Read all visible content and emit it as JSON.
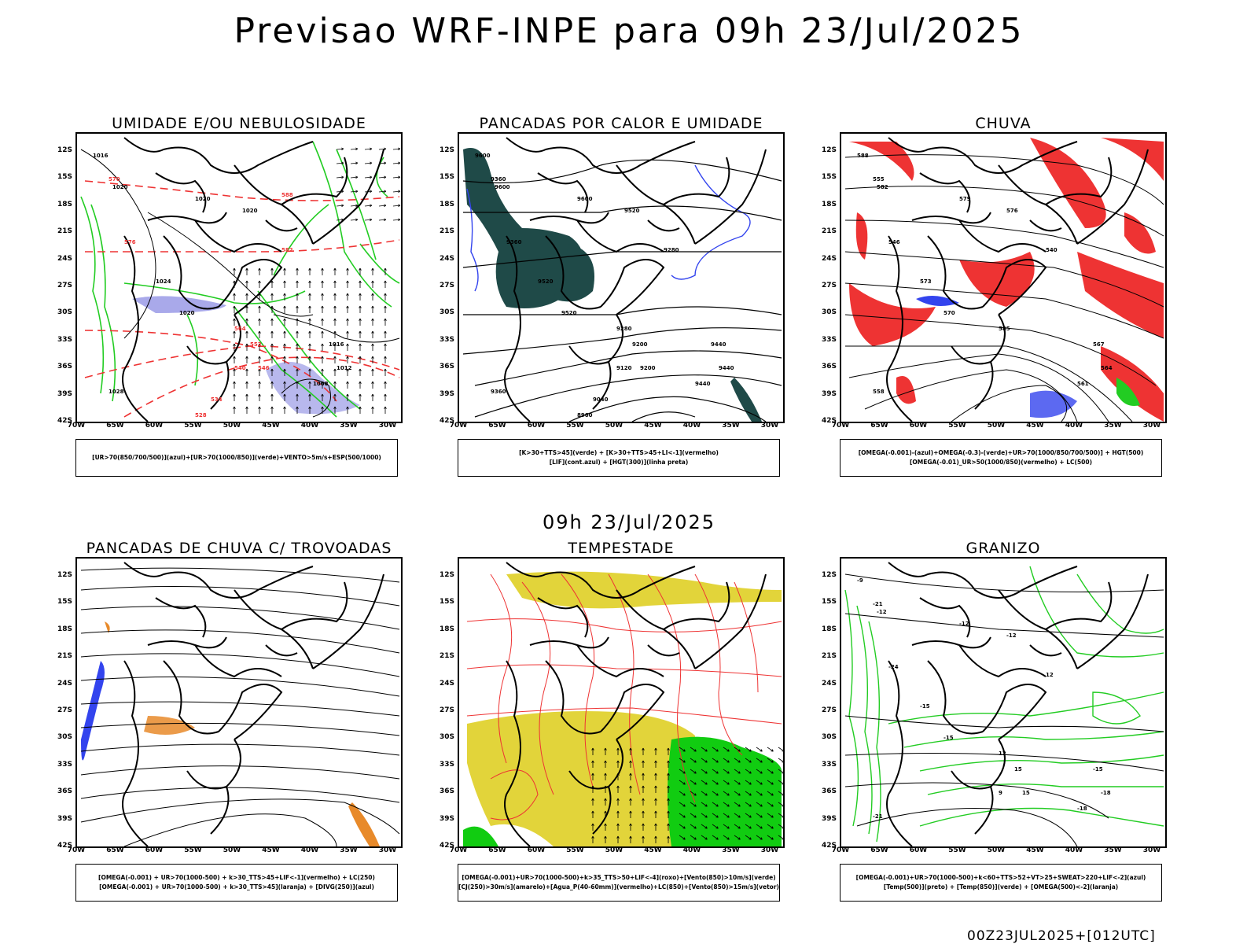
{
  "header": {
    "title": "Previsao WRF-INPE  para 09h 23/Jul/2025"
  },
  "mid": {
    "title": "09h 23/Jul/2025"
  },
  "footer": {
    "run": "00Z23JUL2025+[012UTC]"
  },
  "axes": {
    "lat_ticks": [
      "12S",
      "15S",
      "18S",
      "21S",
      "24S",
      "27S",
      "30S",
      "33S",
      "36S",
      "39S",
      "42S"
    ],
    "lon_ticks": [
      "70W",
      "65W",
      "60W",
      "55W",
      "50W",
      "45W",
      "40W",
      "35W",
      "30W"
    ]
  },
  "panels": [
    {
      "title": "UMIDADE E/OU NEBULOSIDADE",
      "legend": [
        "[UR>70(850/700/500)](azul)+[UR>70(1000/850)](verde)+VENTO>5m/s+ESP(500/1000)"
      ],
      "contour_labels": [
        "1016",
        "1020",
        "1020",
        "1020",
        "1024",
        "1020",
        "1016",
        "1012",
        "1008",
        "1028",
        "570",
        "576",
        "582",
        "564",
        "552",
        "546",
        "540",
        "534",
        "528",
        "588"
      ]
    },
    {
      "title": "PANCADAS POR CALOR E UMIDADE",
      "legend": [
        "[K>30+TTS>45](verde) + [K>30+TTS>45+LI<-1](vermelho)",
        "[LIF](cont.azul) + [HGT(300)](linha preta)"
      ],
      "contour_labels": [
        "9600",
        "9600",
        "9600",
        "9520",
        "9520",
        "9520",
        "9440",
        "9440",
        "9440",
        "9360",
        "9360",
        "9360",
        "9280",
        "9280",
        "9200",
        "9200",
        "9120",
        "9040",
        "8960"
      ]
    },
    {
      "title": "CHUVA",
      "legend": [
        "[OMEGA(-0.001)-(azul)+OMEGA(-0.3)-(verde)+UR>70(1000/850/700/500)] + HGT(500)",
        "[OMEGA(-0.01)_UR>50(1000/850)(vermelho) + LC(500)"
      ],
      "contour_labels": [
        "588",
        "582",
        "579",
        "576",
        "573",
        "570",
        "567",
        "564",
        "561",
        "558",
        "555",
        "546",
        "540",
        "585"
      ]
    },
    {
      "title": "PANCADAS DE CHUVA C/ TROVOADAS",
      "legend": [
        "[OMEGA(-0.001) + UR>70(1000-500) + k>30_TTS>45+LIF<-1](vermelho) + LC(250)",
        "[OMEGA(-0.001) + UR>70(1000-500) + k>30_TTS>45](laranja) + [DIVG(250)](azul)"
      ],
      "contour_labels": []
    },
    {
      "title": "TEMPESTADE",
      "legend": [
        "[OMEGA(-0.001)+UR>70(1000-500)+k>35_TTS>50+LIF<-4](roxo)+[Vento(850)>10m/s](verde)",
        "[CJ(250)>30m/s](amarelo)+[Agua_P(40-60mm)](vermelho)+LC(850)+[Vento(850)>15m/s](vetor)"
      ],
      "contour_labels": []
    },
    {
      "title": "GRANIZO",
      "legend": [
        "[OMEGA(-0.001)+UR>70(1000-500)+k<60+TTS>52+VT>25+SWEAT>220+LIF<-2](azul)",
        "[Temp(500)](preto) + [Temp(850)](verde) + [OMEGA(500)<-2](laranja)"
      ],
      "contour_labels": [
        "-9",
        "-12",
        "-12",
        "-12",
        "-15",
        "-15",
        "-15",
        "-18",
        "-18",
        "-21",
        "-21",
        "-24",
        "12",
        "12",
        "15",
        "15",
        "9"
      ]
    }
  ],
  "colors": {
    "green": "#22cc22",
    "red": "#ee3333",
    "blue": "#3344ee",
    "dark_teal": "#1f4a48",
    "yellow": "#e2d43a",
    "orange": "#e88a2a",
    "lavender": "#9a9ae6",
    "bright_green": "#11cc11"
  }
}
